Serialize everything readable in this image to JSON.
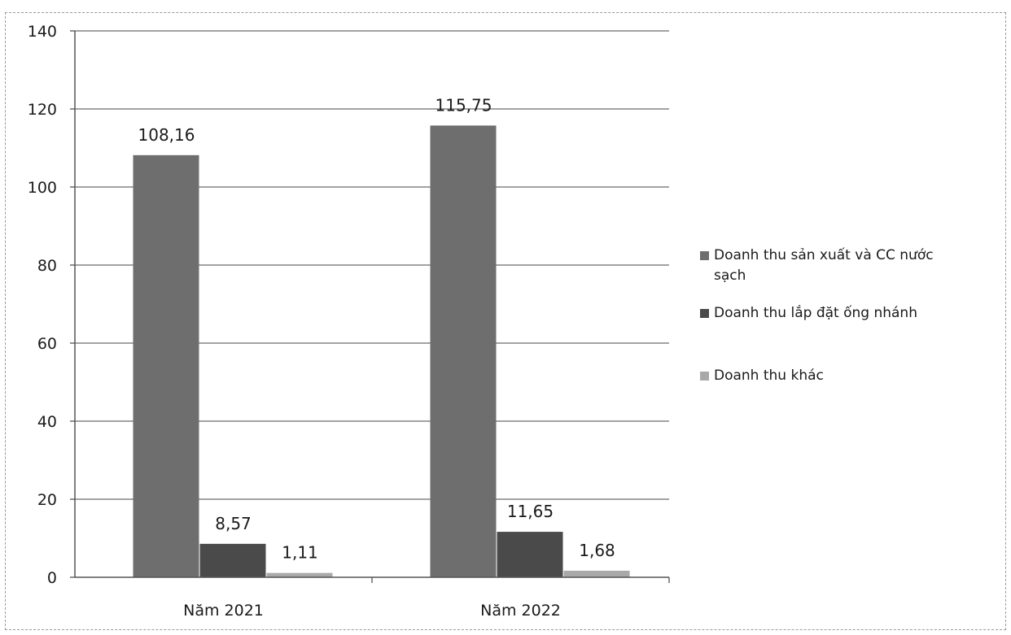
{
  "chart_data": {
    "type": "bar",
    "categories": [
      "Năm 2021",
      "Năm 2022"
    ],
    "series": [
      {
        "name": "Doanh thu sản xuất và CC nước sạch",
        "values": [
          108.16,
          115.75
        ],
        "labels": [
          "108,16",
          "115,75"
        ],
        "color": "#6e6e6e"
      },
      {
        "name": "Doanh thu lắp đặt ống nhánh",
        "values": [
          8.57,
          11.65
        ],
        "labels": [
          "8,57",
          "11,65"
        ],
        "color": "#4a4a4a"
      },
      {
        "name": "Doanh thu khác",
        "values": [
          1.11,
          1.68
        ],
        "labels": [
          "1,11",
          "1,68"
        ],
        "color": "#a9a9a9"
      }
    ],
    "yticks": [
      "0",
      "20",
      "40",
      "60",
      "80",
      "100",
      "120",
      "140"
    ],
    "ylim": [
      0,
      140
    ],
    "grid": true,
    "legend_position": "right"
  }
}
